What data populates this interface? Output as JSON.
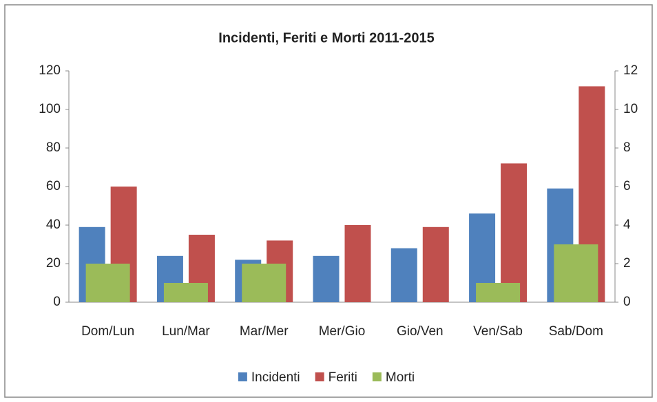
{
  "chart_data": {
    "type": "bar",
    "title": "Incidenti, Feriti e Morti 2011-2015",
    "categories": [
      "Dom/Lun",
      "Lun/Mar",
      "Mar/Mer",
      "Mer/Gio",
      "Gio/Ven",
      "Ven/Sab",
      "Sab/Dom"
    ],
    "series": [
      {
        "name": "Incidenti",
        "color": "#4f81bd",
        "values": [
          39,
          24,
          22,
          24,
          28,
          46,
          59
        ]
      },
      {
        "name": "Feriti",
        "color": "#c0504d",
        "values": [
          60,
          35,
          32,
          40,
          39,
          72,
          112
        ]
      },
      {
        "name": "Morti",
        "color": "#9bbb59",
        "axis": "y2",
        "values": [
          2,
          1,
          2,
          0,
          0,
          1,
          3
        ]
      }
    ],
    "ylim": [
      0,
      120
    ],
    "yticks": [
      0,
      20,
      40,
      60,
      80,
      100,
      120
    ],
    "y2lim": [
      0,
      12
    ],
    "y2ticks": [
      0,
      2,
      4,
      6,
      8,
      10,
      12
    ],
    "grid": false,
    "legend": "bottom"
  }
}
